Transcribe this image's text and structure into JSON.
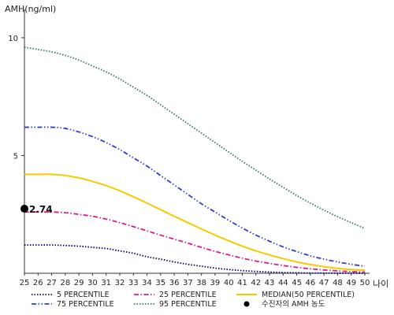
{
  "chart_data": {
    "type": "line",
    "ylabel": "AMH(ng/ml)",
    "xlabel": "나이",
    "xlim": [
      25,
      50
    ],
    "ylim": [
      0,
      11
    ],
    "x_ticks": [
      25,
      26,
      27,
      28,
      29,
      30,
      31,
      32,
      33,
      34,
      35,
      36,
      37,
      38,
      39,
      40,
      41,
      42,
      43,
      44,
      45,
      46,
      47,
      48,
      49,
      50
    ],
    "y_ticks": [
      5,
      10
    ],
    "grid": false,
    "legend_position": "bottom",
    "series": [
      {
        "name": "5 PERCENTILE",
        "color": "#000080",
        "dash": "dotted",
        "x": [
          25,
          26,
          27,
          28,
          29,
          30,
          31,
          32,
          33,
          34,
          35,
          36,
          37,
          38,
          39,
          40,
          41,
          42,
          43,
          44,
          45,
          46,
          47,
          48,
          49,
          50
        ],
        "y": [
          1.2,
          1.2,
          1.2,
          1.18,
          1.15,
          1.1,
          1.05,
          0.95,
          0.85,
          0.7,
          0.6,
          0.48,
          0.38,
          0.3,
          0.22,
          0.16,
          0.11,
          0.08,
          0.05,
          0.03,
          0.02,
          0.01,
          0.01,
          0.005,
          0.005,
          0.0
        ]
      },
      {
        "name": "25 PERCENTILE",
        "color": "#dd1a8c",
        "dash": "dashdot",
        "x": [
          25,
          26,
          27,
          28,
          29,
          30,
          31,
          32,
          33,
          34,
          35,
          36,
          37,
          38,
          39,
          40,
          41,
          42,
          43,
          44,
          45,
          46,
          47,
          48,
          49,
          50
        ],
        "y": [
          2.6,
          2.6,
          2.6,
          2.57,
          2.5,
          2.42,
          2.3,
          2.15,
          1.98,
          1.8,
          1.62,
          1.45,
          1.28,
          1.1,
          0.93,
          0.78,
          0.64,
          0.52,
          0.42,
          0.33,
          0.25,
          0.19,
          0.14,
          0.1,
          0.07,
          0.05
        ]
      },
      {
        "name": "MEDIAN(50 PERCENTILE)",
        "color": "#f5cb00",
        "dash": "solid",
        "x": [
          25,
          26,
          27,
          28,
          29,
          30,
          31,
          32,
          33,
          34,
          35,
          36,
          37,
          38,
          39,
          40,
          41,
          42,
          43,
          44,
          45,
          46,
          47,
          48,
          49,
          50
        ],
        "y": [
          4.2,
          4.2,
          4.2,
          4.15,
          4.05,
          3.9,
          3.72,
          3.5,
          3.25,
          2.98,
          2.7,
          2.42,
          2.15,
          1.88,
          1.62,
          1.38,
          1.15,
          0.95,
          0.78,
          0.62,
          0.48,
          0.37,
          0.28,
          0.21,
          0.16,
          0.13
        ]
      },
      {
        "name": "75 PERCENTILE",
        "color": "#3040c8",
        "dash": "dashdotdot",
        "x": [
          25,
          26,
          27,
          28,
          29,
          30,
          31,
          32,
          33,
          34,
          35,
          36,
          37,
          38,
          39,
          40,
          41,
          42,
          43,
          44,
          45,
          46,
          47,
          48,
          49,
          50
        ],
        "y": [
          6.2,
          6.2,
          6.2,
          6.15,
          6.0,
          5.8,
          5.55,
          5.25,
          4.9,
          4.55,
          4.15,
          3.75,
          3.35,
          2.95,
          2.6,
          2.25,
          1.92,
          1.62,
          1.36,
          1.12,
          0.92,
          0.74,
          0.6,
          0.48,
          0.38,
          0.3
        ]
      },
      {
        "name": "95 PERCENTILE",
        "color": "#2e7d4f",
        "dash": "dotted",
        "x": [
          25,
          26,
          27,
          28,
          29,
          30,
          31,
          32,
          33,
          34,
          35,
          36,
          37,
          38,
          39,
          40,
          41,
          42,
          43,
          44,
          45,
          46,
          47,
          48,
          49,
          50
        ],
        "y": [
          9.6,
          9.5,
          9.4,
          9.25,
          9.05,
          8.8,
          8.55,
          8.25,
          7.9,
          7.55,
          7.15,
          6.75,
          6.35,
          5.95,
          5.55,
          5.15,
          4.75,
          4.38,
          4.0,
          3.65,
          3.3,
          2.98,
          2.68,
          2.4,
          2.15,
          1.9
        ]
      }
    ],
    "patient": {
      "label": "수진자의 AMH 농도",
      "x": 25,
      "y": 2.74,
      "value_label": "2.74",
      "color": "#000000"
    }
  }
}
